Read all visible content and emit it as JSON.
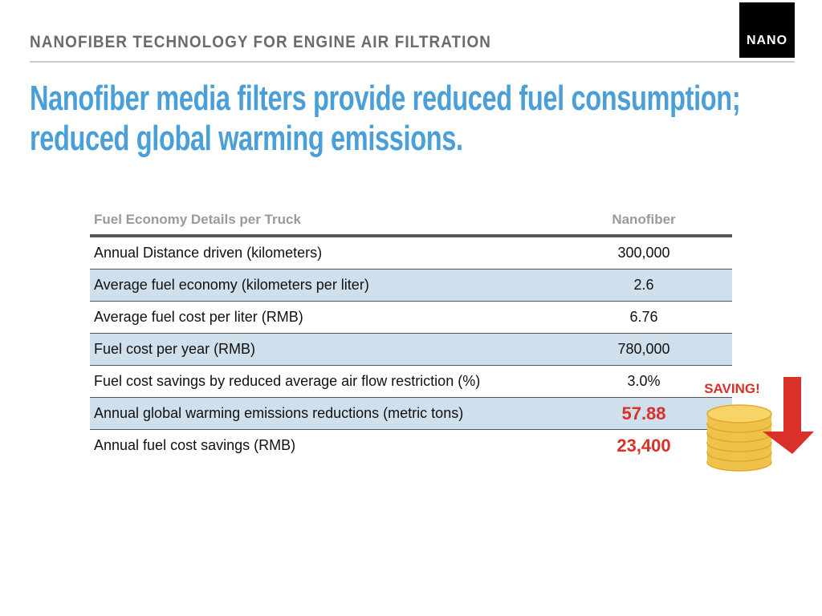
{
  "header": {
    "title": "NANOFIBER TECHNOLOGY FOR ENGINE AIR FILTRATION",
    "logo": "NANO"
  },
  "headline": [
    "Nanofiber media filters provide reduced fuel consumption;",
    "reduced global warming emissions."
  ],
  "table": {
    "columns": [
      "Fuel Economy Details per Truck",
      "Nanofiber"
    ],
    "rows": [
      [
        "Annual Distance driven (kilometers)",
        "300,000"
      ],
      [
        "Average fuel economy (kilometers per liter)",
        "2.6"
      ],
      [
        "Average fuel cost per liter (RMB)",
        "6.76"
      ],
      [
        "Fuel cost per year (RMB)",
        "780,000"
      ],
      [
        "Fuel cost savings by reduced average air flow restriction (%)",
        "3.0%"
      ],
      [
        "Annual global warming emissions reductions (metric tons)",
        "57.88"
      ],
      [
        "Annual fuel cost savings (RMB)",
        "23,400"
      ]
    ]
  },
  "badge": "SAVING!"
}
